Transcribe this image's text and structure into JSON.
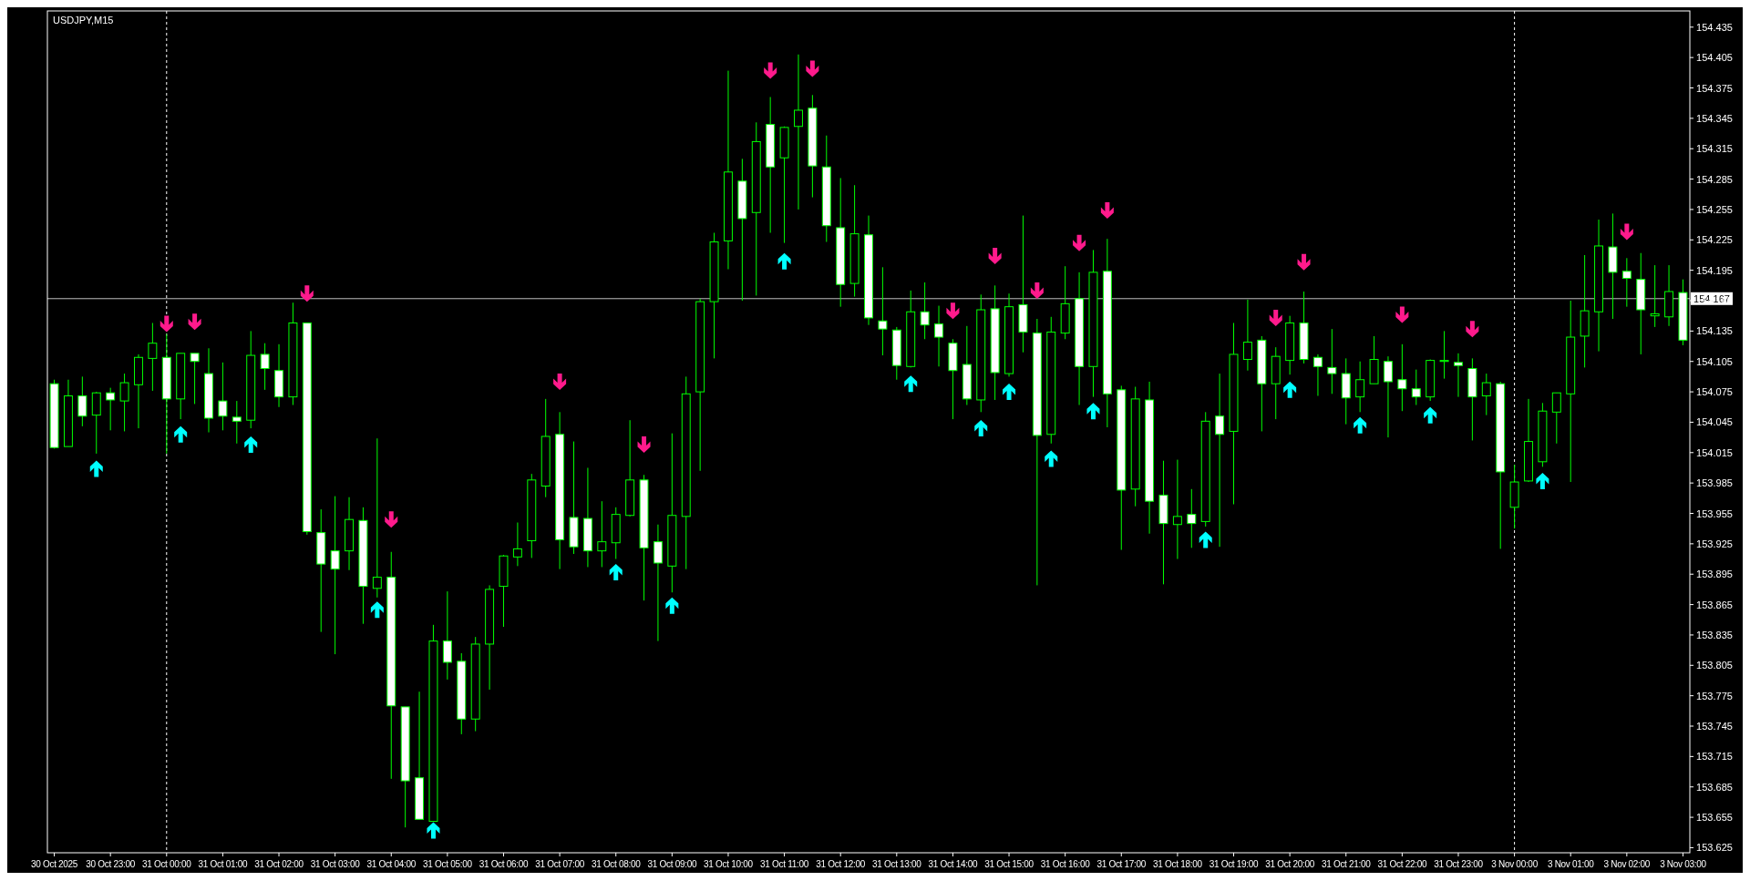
{
  "chart_data": {
    "type": "candlestick",
    "title": "USDJPY,M15",
    "categories": [
      "30 Oct 2025",
      null,
      null,
      null,
      "30 Oct 23:00",
      null,
      null,
      null,
      "31 Oct 00:00",
      null,
      null,
      null,
      "31 Oct 01:00",
      null,
      null,
      null,
      "31 Oct 02:00",
      null,
      null,
      null,
      "31 Oct 03:00",
      null,
      null,
      null,
      "31 Oct 04:00",
      null,
      null,
      null,
      "31 Oct 05:00",
      null,
      null,
      null,
      "31 Oct 06:00",
      null,
      null,
      null,
      "31 Oct 07:00",
      null,
      null,
      null,
      "31 Oct 08:00",
      null,
      null,
      null,
      "31 Oct 09:00",
      null,
      null,
      null,
      "31 Oct 10:00",
      null,
      null,
      null,
      "31 Oct 11:00",
      null,
      null,
      null,
      "31 Oct 12:00",
      null,
      null,
      null,
      "31 Oct 13:00",
      null,
      null,
      null,
      "31 Oct 14:00",
      null,
      null,
      null,
      "31 Oct 15:00",
      null,
      null,
      null,
      "31 Oct 16:00",
      null,
      null,
      null,
      "31 Oct 17:00",
      null,
      null,
      null,
      "31 Oct 18:00",
      null,
      null,
      null,
      "31 Oct 19:00",
      null,
      null,
      null,
      "31 Oct 20:00",
      null,
      null,
      null,
      "31 Oct 21:00",
      null,
      null,
      null,
      "31 Oct 22:00",
      null,
      null,
      null,
      "31 Oct 23:00",
      null,
      null,
      null,
      "3 Nov 00:00",
      null,
      null,
      null,
      "3 Nov 01:00",
      null,
      null,
      null,
      "3 Nov 02:00",
      null,
      null,
      null,
      "3 Nov 03:00"
    ],
    "ohlc": [
      [
        154.083,
        154.087,
        154.019,
        154.02
      ],
      [
        154.021,
        154.087,
        154.021,
        154.071
      ],
      [
        154.071,
        154.09,
        154.041,
        154.051
      ],
      [
        154.052,
        154.075,
        154.014,
        154.074
      ],
      [
        154.074,
        154.079,
        154.037,
        154.067
      ],
      [
        154.066,
        154.093,
        154.036,
        154.084
      ],
      [
        154.082,
        154.112,
        154.039,
        154.109
      ],
      [
        154.108,
        154.143,
        154.076,
        154.123
      ],
      [
        154.109,
        154.132,
        154.014,
        154.068
      ],
      [
        154.068,
        154.113,
        154.048,
        154.113
      ],
      [
        154.113,
        154.113,
        154.063,
        154.105
      ],
      [
        154.093,
        154.118,
        154.035,
        154.049
      ],
      [
        154.066,
        154.104,
        154.037,
        154.051
      ],
      [
        154.05,
        154.066,
        154.024,
        154.046
      ],
      [
        154.047,
        154.135,
        154.039,
        154.111
      ],
      [
        154.112,
        154.123,
        154.077,
        154.098
      ],
      [
        154.096,
        154.122,
        154.06,
        154.07
      ],
      [
        154.07,
        154.163,
        154.062,
        154.143
      ],
      [
        154.143,
        154.143,
        153.934,
        153.937
      ],
      [
        153.936,
        153.959,
        153.838,
        153.905
      ],
      [
        153.918,
        153.972,
        153.816,
        153.9
      ],
      [
        153.918,
        153.971,
        153.899,
        153.949
      ],
      [
        153.948,
        153.961,
        153.846,
        153.883
      ],
      [
        153.881,
        154.029,
        153.872,
        153.892
      ],
      [
        153.892,
        153.917,
        153.693,
        153.765
      ],
      [
        153.764,
        153.764,
        153.645,
        153.691
      ],
      [
        153.694,
        153.779,
        153.653,
        153.653
      ],
      [
        153.651,
        153.845,
        153.651,
        153.829
      ],
      [
        153.829,
        153.878,
        153.791,
        153.808
      ],
      [
        153.809,
        153.817,
        153.737,
        153.752
      ],
      [
        153.752,
        153.833,
        153.74,
        153.826
      ],
      [
        153.826,
        153.884,
        153.781,
        153.88
      ],
      [
        153.883,
        153.914,
        153.843,
        153.913
      ],
      [
        153.912,
        153.946,
        153.903,
        153.92
      ],
      [
        153.928,
        153.994,
        153.911,
        153.988
      ],
      [
        153.982,
        154.068,
        153.971,
        154.031
      ],
      [
        154.033,
        154.055,
        153.9,
        153.929
      ],
      [
        153.951,
        154.026,
        153.915,
        153.922
      ],
      [
        153.95,
        154.0,
        153.902,
        153.918
      ],
      [
        153.918,
        153.967,
        153.902,
        153.927
      ],
      [
        153.926,
        153.961,
        153.91,
        153.954
      ],
      [
        153.953,
        154.047,
        153.952,
        153.988
      ],
      [
        153.988,
        153.993,
        153.869,
        153.921
      ],
      [
        153.927,
        153.944,
        153.829,
        153.906
      ],
      [
        153.903,
        154.034,
        153.877,
        153.953
      ],
      [
        153.952,
        154.09,
        153.9,
        154.073
      ],
      [
        154.075,
        154.167,
        153.997,
        154.164
      ],
      [
        154.164,
        154.232,
        154.108,
        154.223
      ],
      [
        154.224,
        154.392,
        154.196,
        154.292
      ],
      [
        154.283,
        154.305,
        154.165,
        154.246
      ],
      [
        154.252,
        154.341,
        154.17,
        154.322
      ],
      [
        154.339,
        154.366,
        154.232,
        154.297
      ],
      [
        154.306,
        154.337,
        154.222,
        154.336
      ],
      [
        154.337,
        154.408,
        154.255,
        154.353
      ],
      [
        154.355,
        154.368,
        154.267,
        154.298
      ],
      [
        154.297,
        154.328,
        154.223,
        154.239
      ],
      [
        154.237,
        154.286,
        154.159,
        154.181
      ],
      [
        154.182,
        154.279,
        154.169,
        154.231
      ],
      [
        154.23,
        154.249,
        154.141,
        154.148
      ],
      [
        154.145,
        154.198,
        154.111,
        154.137
      ],
      [
        154.136,
        154.139,
        154.087,
        154.101
      ],
      [
        154.1,
        154.175,
        154.099,
        154.154
      ],
      [
        154.154,
        154.183,
        154.127,
        154.141
      ],
      [
        154.142,
        154.16,
        154.1,
        154.129
      ],
      [
        154.123,
        154.127,
        154.048,
        154.096
      ],
      [
        154.102,
        154.14,
        154.062,
        154.068
      ],
      [
        154.067,
        154.171,
        154.055,
        154.156
      ],
      [
        154.157,
        154.18,
        154.067,
        154.094
      ],
      [
        154.093,
        154.172,
        154.09,
        154.159
      ],
      [
        154.161,
        154.249,
        154.114,
        154.134
      ],
      [
        154.133,
        154.147,
        153.884,
        154.032
      ],
      [
        154.033,
        154.149,
        154.024,
        154.134
      ],
      [
        154.133,
        154.199,
        154.127,
        154.162
      ],
      [
        154.167,
        154.193,
        154.062,
        154.1
      ],
      [
        154.1,
        154.215,
        154.07,
        154.193
      ],
      [
        154.194,
        154.226,
        154.04,
        154.073
      ],
      [
        154.077,
        154.081,
        153.919,
        153.978
      ],
      [
        153.979,
        154.08,
        153.962,
        154.068
      ],
      [
        154.067,
        154.085,
        153.935,
        153.967
      ],
      [
        153.973,
        154.007,
        153.885,
        153.945
      ],
      [
        153.944,
        154.008,
        153.91,
        153.952
      ],
      [
        153.954,
        153.979,
        153.921,
        153.945
      ],
      [
        153.947,
        154.055,
        153.942,
        154.046
      ],
      [
        154.051,
        154.093,
        153.922,
        154.033
      ],
      [
        154.036,
        154.143,
        153.964,
        154.112
      ],
      [
        154.107,
        154.166,
        154.096,
        154.124
      ],
      [
        154.126,
        154.13,
        154.036,
        154.083
      ],
      [
        154.083,
        154.119,
        154.048,
        154.11
      ],
      [
        154.106,
        154.15,
        154.092,
        154.143
      ],
      [
        154.143,
        154.174,
        154.103,
        154.107
      ],
      [
        154.109,
        154.112,
        154.071,
        154.1
      ],
      [
        154.099,
        154.137,
        154.073,
        154.093
      ],
      [
        154.093,
        154.108,
        154.043,
        154.069
      ],
      [
        154.07,
        154.105,
        154.055,
        154.087
      ],
      [
        154.083,
        154.13,
        154.083,
        154.107
      ],
      [
        154.105,
        154.11,
        154.03,
        154.085
      ],
      [
        154.087,
        154.122,
        154.056,
        154.078
      ],
      [
        154.078,
        154.097,
        154.062,
        154.07
      ],
      [
        154.07,
        154.107,
        154.066,
        154.106
      ],
      [
        154.105,
        154.135,
        154.088,
        154.106
      ],
      [
        154.104,
        154.113,
        154.07,
        154.101
      ],
      [
        154.098,
        154.108,
        154.027,
        154.07
      ],
      [
        154.071,
        154.093,
        154.052,
        154.084
      ],
      [
        154.083,
        154.085,
        153.92,
        153.996
      ],
      [
        153.961,
        154.003,
        153.94,
        153.986
      ],
      [
        153.987,
        154.068,
        153.986,
        154.026
      ],
      [
        154.006,
        154.064,
        154.001,
        154.056
      ],
      [
        154.055,
        154.074,
        154.024,
        154.074
      ],
      [
        154.073,
        154.165,
        153.986,
        154.129
      ],
      [
        154.13,
        154.21,
        154.099,
        154.155
      ],
      [
        154.154,
        154.245,
        154.115,
        154.219
      ],
      [
        154.218,
        154.251,
        154.147,
        154.193
      ],
      [
        154.194,
        154.207,
        154.159,
        154.187
      ],
      [
        154.186,
        154.212,
        154.112,
        154.156
      ],
      [
        154.15,
        154.2,
        154.139,
        154.152
      ],
      [
        154.149,
        154.2,
        154.14,
        154.174
      ],
      [
        154.173,
        154.186,
        154.121,
        154.126
      ]
    ],
    "color": "#00ff00",
    "series": [
      {
        "type": "scatter",
        "color": "#ff1a8c",
        "marker": "triangle",
        "values": [
          null,
          null,
          null,
          null,
          null,
          null,
          null,
          null,
          154.142,
          null,
          154.144,
          null,
          null,
          null,
          null,
          null,
          null,
          null,
          154.172,
          null,
          null,
          null,
          null,
          null,
          153.949,
          null,
          null,
          null,
          null,
          null,
          null,
          null,
          null,
          null,
          null,
          null,
          154.085,
          null,
          null,
          null,
          null,
          null,
          154.023,
          null,
          null,
          null,
          null,
          null,
          null,
          null,
          null,
          154.392,
          null,
          null,
          154.394,
          null,
          null,
          null,
          null,
          null,
          null,
          null,
          null,
          null,
          154.155,
          null,
          null,
          154.209,
          null,
          null,
          154.175,
          null,
          null,
          154.222,
          null,
          154.254,
          null,
          null,
          null,
          null,
          null,
          null,
          null,
          null,
          null,
          null,
          null,
          154.148,
          null,
          154.203,
          null,
          null,
          null,
          null,
          null,
          null,
          154.151,
          null,
          null,
          null,
          null,
          154.137,
          null,
          null,
          null,
          null,
          null,
          null,
          null,
          null,
          null,
          null,
          154.233,
          null,
          null,
          null,
          null
        ]
      },
      {
        "type": "scatter",
        "color": "#00ffff",
        "marker": "triangle",
        "values": [
          null,
          null,
          null,
          153.999,
          null,
          null,
          null,
          null,
          null,
          154.033,
          null,
          null,
          null,
          null,
          154.023,
          null,
          null,
          null,
          null,
          null,
          null,
          null,
          null,
          153.86,
          null,
          null,
          null,
          153.642,
          null,
          null,
          null,
          null,
          null,
          null,
          null,
          null,
          null,
          null,
          null,
          null,
          153.897,
          null,
          null,
          null,
          153.864,
          null,
          null,
          null,
          null,
          null,
          null,
          null,
          154.204,
          null,
          null,
          null,
          null,
          null,
          null,
          null,
          null,
          154.083,
          null,
          null,
          null,
          null,
          154.039,
          null,
          154.075,
          null,
          null,
          154.009,
          null,
          null,
          154.056,
          null,
          null,
          null,
          null,
          null,
          null,
          null,
          153.929,
          null,
          null,
          null,
          null,
          null,
          154.077,
          null,
          null,
          null,
          null,
          154.042,
          null,
          null,
          null,
          null,
          154.052,
          null,
          null,
          null,
          null,
          null,
          null,
          null,
          153.987,
          null,
          null,
          null,
          null,
          null,
          null,
          null,
          null,
          null,
          null
        ]
      }
    ],
    "ylim": [
      153.62,
      154.451
    ],
    "yticks": [
      153.625,
      153.655,
      153.685,
      153.715,
      153.745,
      153.775,
      153.805,
      153.835,
      153.865,
      153.895,
      153.925,
      153.955,
      153.985,
      154.015,
      154.045,
      154.075,
      154.105,
      154.135,
      154.165,
      154.195,
      154.225,
      154.255,
      154.285,
      154.315,
      154.345,
      154.375,
      154.405,
      154.435
    ],
    "ref_lines": [
      {
        "axis": "y",
        "value": 154.167,
        "label": "154.167",
        "color": "#c0c0c0",
        "line_style": "solid"
      },
      {
        "axis": "x",
        "value": "31 Oct 00:00",
        "color": "#ffffff",
        "line_style": "dashed"
      },
      {
        "axis": "x",
        "value": "3 Nov 00:00",
        "color": "#ffffff",
        "line_style": "dashed"
      }
    ],
    "grid": false
  }
}
